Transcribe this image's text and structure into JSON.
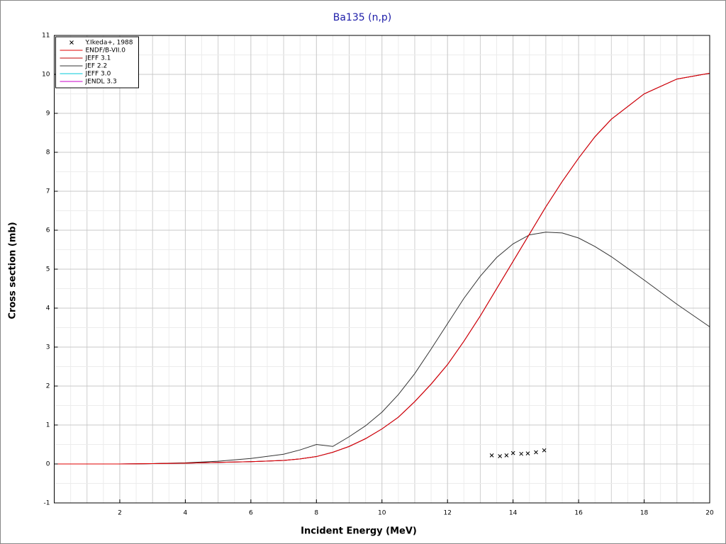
{
  "chart_data": {
    "type": "line",
    "title": "Ba135 (n,p)",
    "x_label": "Incident Energy (MeV)",
    "y_label": "Cross section (mb)",
    "xlim": [
      0,
      20
    ],
    "ylim": [
      -1,
      11
    ],
    "xticks": [
      2,
      4,
      6,
      8,
      10,
      12,
      14,
      16,
      18,
      20
    ],
    "yticks": [
      -1,
      0,
      1,
      2,
      3,
      4,
      5,
      6,
      7,
      8,
      9,
      10,
      11
    ],
    "grid": true,
    "legend": "top-left",
    "series": [
      {
        "name": "Y.Ikeda+, 1988",
        "type": "scatter",
        "color": "#000000",
        "x": [
          13.35,
          13.6,
          13.8,
          14.0,
          14.25,
          14.45,
          14.7,
          14.95
        ],
        "values": [
          0.22,
          0.2,
          0.22,
          0.28,
          0.26,
          0.27,
          0.3,
          0.35
        ]
      },
      {
        "name": "ENDF/B-VII.0",
        "color": "#e00000",
        "x": [
          0,
          2,
          2.5,
          3,
          4,
          5,
          6,
          7,
          7.5,
          8,
          8.5,
          9,
          9.5,
          10,
          10.5,
          11,
          11.5,
          12,
          12.5,
          13,
          13.5,
          14,
          14.5,
          15,
          15.5,
          16,
          16.5,
          17,
          18,
          19,
          20
        ],
        "values": [
          0,
          0,
          0.005,
          0.01,
          0.02,
          0.04,
          0.06,
          0.09,
          0.13,
          0.19,
          0.3,
          0.45,
          0.65,
          0.9,
          1.2,
          1.6,
          2.05,
          2.55,
          3.15,
          3.8,
          4.5,
          5.2,
          5.9,
          6.6,
          7.25,
          7.85,
          8.4,
          8.85,
          9.5,
          9.88,
          10.03
        ]
      },
      {
        "name": "JEFF 3.1",
        "color": "#c00000",
        "x": [
          0,
          2,
          2.5,
          3,
          4,
          5,
          6,
          7,
          7.5,
          8,
          8.5,
          9,
          9.5,
          10,
          10.5,
          11,
          11.5,
          12,
          12.5,
          13,
          13.5,
          14,
          14.5,
          15,
          15.5,
          16,
          16.5,
          17,
          18,
          19,
          20
        ],
        "values": [
          0,
          0,
          0.005,
          0.01,
          0.02,
          0.04,
          0.06,
          0.09,
          0.13,
          0.19,
          0.3,
          0.45,
          0.65,
          0.9,
          1.2,
          1.6,
          2.05,
          2.55,
          3.15,
          3.8,
          4.5,
          5.2,
          5.9,
          6.6,
          7.25,
          7.85,
          8.4,
          8.85,
          9.5,
          9.88,
          10.03
        ]
      },
      {
        "name": "JEF 2.2",
        "color": "#333333",
        "x": [
          0,
          2,
          2.5,
          3,
          4,
          5,
          6,
          7,
          7.5,
          8,
          8.5,
          9,
          9.5,
          10,
          10.5,
          11,
          11.5,
          12,
          12.5,
          13,
          13.5,
          14,
          14.5,
          15,
          15.5,
          16,
          16.5,
          17,
          18,
          19,
          20
        ],
        "values": [
          0,
          0,
          0,
          0.01,
          0.03,
          0.07,
          0.14,
          0.25,
          0.36,
          0.5,
          0.45,
          0.7,
          0.98,
          1.33,
          1.78,
          2.32,
          2.95,
          3.6,
          4.25,
          4.82,
          5.3,
          5.65,
          5.88,
          5.95,
          5.93,
          5.8,
          5.58,
          5.32,
          4.72,
          4.1,
          3.52
        ]
      },
      {
        "name": "JEFF 3.0",
        "color": "#00c8d8",
        "x": [
          0,
          2,
          2.5,
          3,
          4,
          5,
          6,
          7,
          7.5,
          8,
          8.5,
          9,
          9.5,
          10,
          10.5,
          11,
          11.5,
          12,
          12.5,
          13,
          13.5,
          14,
          14.5,
          15,
          15.5,
          16,
          16.5,
          17,
          18,
          19,
          20
        ],
        "values": [
          0,
          0,
          0.005,
          0.01,
          0.02,
          0.04,
          0.06,
          0.09,
          0.13,
          0.19,
          0.3,
          0.45,
          0.65,
          0.9,
          1.2,
          1.6,
          2.05,
          2.55,
          3.15,
          3.8,
          4.5,
          5.2,
          5.9,
          6.6,
          7.25,
          7.85,
          8.4,
          8.85,
          9.5,
          9.88,
          10.03
        ]
      },
      {
        "name": "JENDL 3.3",
        "color": "#c800c8",
        "x": [
          0,
          2,
          2.5,
          3,
          4,
          5,
          6,
          7,
          7.5,
          8,
          8.5,
          9,
          9.5,
          10,
          10.5,
          11,
          11.5,
          12,
          12.5,
          13,
          13.5,
          14,
          14.5,
          15,
          15.5,
          16,
          16.5,
          17,
          18,
          19,
          20
        ],
        "values": [
          0,
          0,
          0.005,
          0.01,
          0.02,
          0.04,
          0.06,
          0.09,
          0.13,
          0.19,
          0.3,
          0.45,
          0.65,
          0.9,
          1.2,
          1.6,
          2.05,
          2.55,
          3.15,
          3.8,
          4.5,
          5.2,
          5.9,
          6.6,
          7.25,
          7.85,
          8.4,
          8.85,
          9.5,
          9.88,
          10.03
        ]
      }
    ]
  }
}
